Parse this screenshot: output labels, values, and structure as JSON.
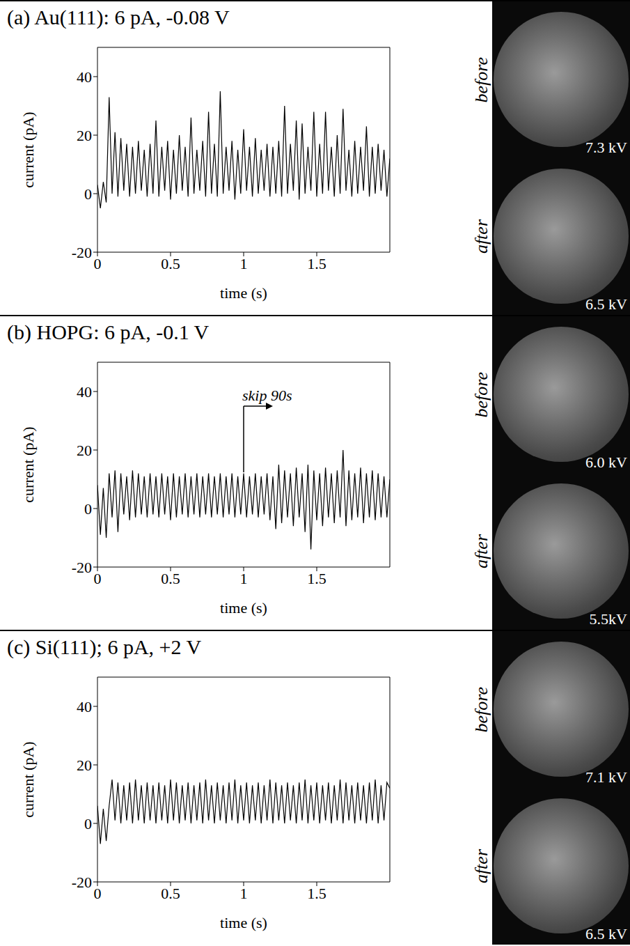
{
  "chart_data": [
    {
      "type": "line",
      "title": "(a) Au(111): 6 pA, -0.08 V",
      "x_label": "time (s)",
      "y_label": "current (pA)",
      "color": "#000000",
      "x": [
        0,
        0.02,
        0.04,
        0.06,
        0.08,
        0.1,
        0.12,
        0.14,
        0.16,
        0.18,
        0.2,
        0.22,
        0.24,
        0.26,
        0.28,
        0.3,
        0.32,
        0.34,
        0.36,
        0.38,
        0.4,
        0.42,
        0.44,
        0.46,
        0.48,
        0.5,
        0.52,
        0.54,
        0.56,
        0.58,
        0.6,
        0.62,
        0.64,
        0.66,
        0.68,
        0.7,
        0.72,
        0.74,
        0.76,
        0.78,
        0.8,
        0.82,
        0.84,
        0.86,
        0.88,
        0.9,
        0.92,
        0.94,
        0.96,
        0.98,
        1,
        1.02,
        1.04,
        1.06,
        1.08,
        1.1,
        1.12,
        1.14,
        1.16,
        1.18,
        1.2,
        1.22,
        1.24,
        1.26,
        1.28,
        1.3,
        1.32,
        1.34,
        1.36,
        1.38,
        1.4,
        1.42,
        1.44,
        1.46,
        1.48,
        1.5,
        1.52,
        1.54,
        1.56,
        1.58,
        1.6,
        1.62,
        1.64,
        1.66,
        1.68,
        1.7,
        1.72,
        1.74,
        1.76,
        1.78,
        1.8,
        1.82,
        1.84,
        1.86,
        1.88,
        1.9,
        1.92,
        1.94,
        1.96,
        1.98,
        2
      ],
      "values": [
        3,
        -5,
        4,
        -3,
        33,
        0,
        21,
        -1,
        19,
        1,
        17,
        -1,
        16,
        0,
        18,
        1,
        15,
        -1,
        17,
        0,
        25,
        -1,
        16,
        1,
        18,
        -2,
        15,
        0,
        20,
        1,
        16,
        -1,
        26,
        0,
        15,
        1,
        18,
        -1,
        28,
        0,
        17,
        -1,
        35,
        0,
        16,
        1,
        18,
        -2,
        15,
        0,
        22,
        1,
        16,
        -1,
        19,
        0,
        15,
        1,
        17,
        -1,
        16,
        0,
        18,
        -1,
        30,
        0,
        17,
        1,
        25,
        -2,
        24,
        0,
        16,
        1,
        28,
        -1,
        17,
        0,
        28,
        1,
        16,
        -1,
        20,
        0,
        29,
        1,
        15,
        -1,
        18,
        0,
        16,
        1,
        23,
        -1,
        16,
        0,
        17,
        1,
        15,
        -1,
        12
      ],
      "xlim": [
        0,
        2
      ],
      "ylim": [
        -20,
        50
      ],
      "xticks": [
        0,
        0.5,
        1,
        1.5
      ],
      "yticks": [
        -20,
        0,
        20,
        40
      ],
      "images": [
        {
          "caption": "before",
          "label": "7.3 kV"
        },
        {
          "caption": "after",
          "label": "6.5 kV"
        }
      ]
    },
    {
      "type": "line",
      "title": "(b) HOPG: 6 pA, -0.1 V",
      "x_label": "time (s)",
      "y_label": "current (pA)",
      "color": "#000000",
      "x": [
        0,
        0.02,
        0.04,
        0.06,
        0.08,
        0.1,
        0.12,
        0.14,
        0.16,
        0.18,
        0.2,
        0.22,
        0.24,
        0.26,
        0.28,
        0.3,
        0.32,
        0.34,
        0.36,
        0.38,
        0.4,
        0.42,
        0.44,
        0.46,
        0.48,
        0.5,
        0.52,
        0.54,
        0.56,
        0.58,
        0.6,
        0.62,
        0.64,
        0.66,
        0.68,
        0.7,
        0.72,
        0.74,
        0.76,
        0.78,
        0.8,
        0.82,
        0.84,
        0.86,
        0.88,
        0.9,
        0.92,
        0.94,
        0.96,
        0.98,
        1,
        1.02,
        1.04,
        1.06,
        1.08,
        1.1,
        1.12,
        1.14,
        1.16,
        1.18,
        1.2,
        1.22,
        1.24,
        1.26,
        1.28,
        1.3,
        1.32,
        1.34,
        1.36,
        1.38,
        1.4,
        1.42,
        1.44,
        1.46,
        1.48,
        1.5,
        1.52,
        1.54,
        1.56,
        1.58,
        1.6,
        1.62,
        1.64,
        1.66,
        1.68,
        1.7,
        1.72,
        1.74,
        1.76,
        1.78,
        1.8,
        1.82,
        1.84,
        1.86,
        1.88,
        1.9,
        1.92,
        1.94,
        1.96,
        1.98,
        2
      ],
      "values": [
        8,
        -9,
        7,
        -10,
        12,
        -3,
        13,
        -8,
        12,
        -2,
        11,
        -4,
        13,
        -3,
        12,
        -2,
        11,
        -3,
        12,
        -2,
        11,
        -3,
        12,
        -2,
        11,
        -4,
        12,
        -3,
        11,
        -2,
        12,
        -3,
        11,
        -2,
        12,
        -3,
        11,
        -2,
        12,
        -3,
        11,
        -2,
        12,
        -3,
        11,
        -2,
        12,
        -3,
        11,
        -2,
        12,
        -3,
        11,
        -2,
        12,
        -3,
        11,
        -2,
        12,
        -4,
        11,
        -7,
        15,
        -5,
        13,
        -3,
        12,
        -6,
        14,
        -3,
        12,
        -8,
        15,
        -14,
        13,
        -4,
        12,
        -6,
        14,
        -3,
        12,
        -5,
        13,
        -3,
        20,
        -6,
        13,
        -4,
        12,
        -3,
        14,
        -5,
        12,
        -3,
        13,
        -4,
        12,
        -3,
        11,
        -3,
        10
      ],
      "xlim": [
        0,
        2
      ],
      "ylim": [
        -20,
        50
      ],
      "xticks": [
        0,
        0.5,
        1,
        1.5
      ],
      "yticks": [
        -20,
        0,
        20,
        40
      ],
      "annotations": [
        {
          "text": "skip 90s",
          "x": 1,
          "y": 35
        }
      ],
      "images": [
        {
          "caption": "before",
          "label": "6.0 kV"
        },
        {
          "caption": "after",
          "label": "5.5kV"
        }
      ]
    },
    {
      "type": "line",
      "title": "(c) Si(111); 6 pA, +2 V",
      "x_label": "time (s)",
      "y_label": "current (pA)",
      "color": "#000000",
      "x": [
        0,
        0.02,
        0.04,
        0.06,
        0.08,
        0.1,
        0.12,
        0.14,
        0.16,
        0.18,
        0.2,
        0.22,
        0.24,
        0.26,
        0.28,
        0.3,
        0.32,
        0.34,
        0.36,
        0.38,
        0.4,
        0.42,
        0.44,
        0.46,
        0.48,
        0.5,
        0.52,
        0.54,
        0.56,
        0.58,
        0.6,
        0.62,
        0.64,
        0.66,
        0.68,
        0.7,
        0.72,
        0.74,
        0.76,
        0.78,
        0.8,
        0.82,
        0.84,
        0.86,
        0.88,
        0.9,
        0.92,
        0.94,
        0.96,
        0.98,
        1,
        1.02,
        1.04,
        1.06,
        1.08,
        1.1,
        1.12,
        1.14,
        1.16,
        1.18,
        1.2,
        1.22,
        1.24,
        1.26,
        1.28,
        1.3,
        1.32,
        1.34,
        1.36,
        1.38,
        1.4,
        1.42,
        1.44,
        1.46,
        1.48,
        1.5,
        1.52,
        1.54,
        1.56,
        1.58,
        1.6,
        1.62,
        1.64,
        1.66,
        1.68,
        1.7,
        1.72,
        1.74,
        1.76,
        1.78,
        1.8,
        1.82,
        1.84,
        1.86,
        1.88,
        1.9,
        1.92,
        1.94,
        1.96,
        1.98,
        2
      ],
      "values": [
        6,
        -7,
        5,
        -6,
        6,
        15,
        1,
        14,
        0,
        13,
        1,
        14,
        0,
        15,
        1,
        13,
        0,
        14,
        1,
        13,
        0,
        14,
        1,
        13,
        0,
        15,
        1,
        14,
        0,
        13,
        1,
        14,
        0,
        13,
        1,
        14,
        0,
        15,
        1,
        13,
        0,
        14,
        1,
        13,
        0,
        14,
        1,
        15,
        0,
        13,
        1,
        14,
        0,
        13,
        1,
        14,
        0,
        13,
        1,
        15,
        0,
        14,
        1,
        13,
        0,
        14,
        1,
        13,
        0,
        14,
        1,
        15,
        0,
        13,
        1,
        14,
        0,
        13,
        1,
        14,
        0,
        13,
        1,
        15,
        0,
        14,
        1,
        13,
        0,
        14,
        1,
        13,
        0,
        14,
        1,
        15,
        0,
        13,
        1,
        14,
        12
      ],
      "xlim": [
        0,
        2
      ],
      "ylim": [
        -20,
        50
      ],
      "xticks": [
        0,
        0.5,
        1,
        1.5
      ],
      "yticks": [
        -20,
        0,
        20,
        40
      ],
      "images": [
        {
          "caption": "before",
          "label": "7.1 kV"
        },
        {
          "caption": "after",
          "label": "6.5 kV"
        }
      ]
    }
  ]
}
